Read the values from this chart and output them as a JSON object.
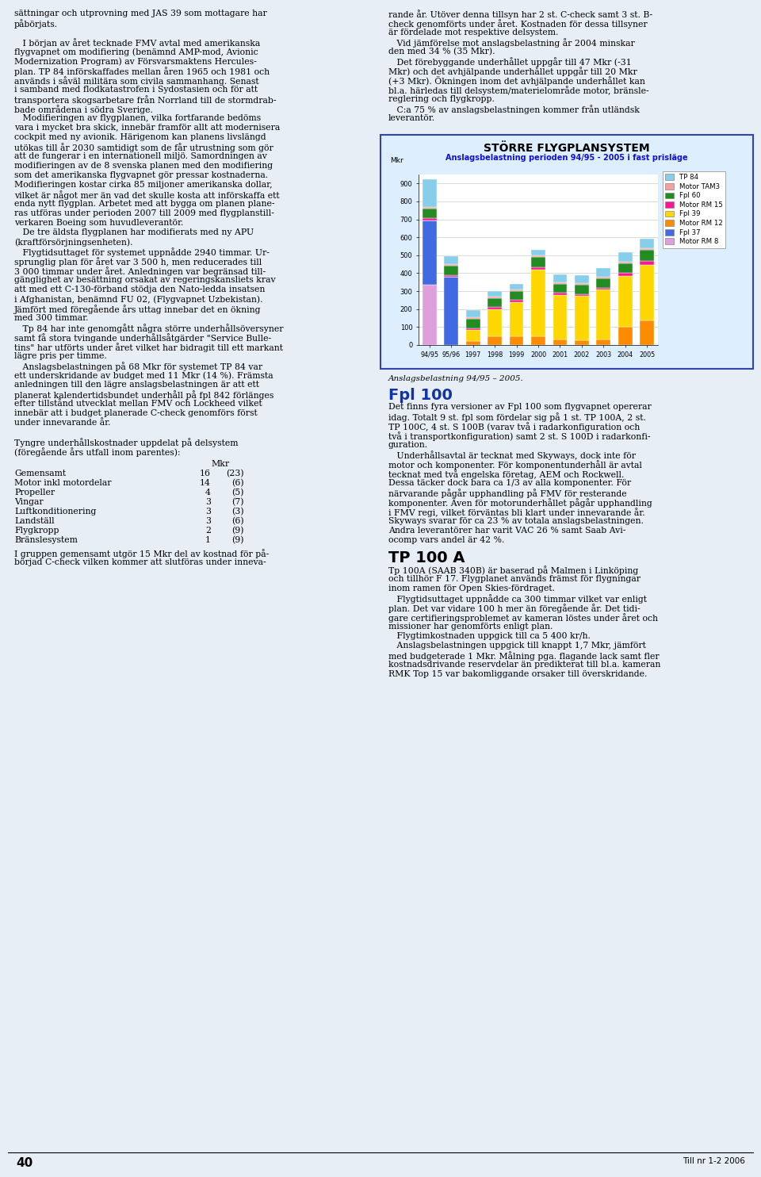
{
  "title": "STÖRRE FLYGPLANSYSTEM",
  "subtitle": "Anslagsbelastning perioden 94/95 - 2005 i fast prisläge",
  "ylabel": "Mkr",
  "years": [
    "94/95",
    "95/96",
    "1997",
    "1998",
    "1999",
    "2000",
    "2001",
    "2002",
    "2003",
    "2004",
    "2005"
  ],
  "series": {
    "TP 84": [
      155,
      45,
      40,
      30,
      30,
      30,
      45,
      45,
      50,
      50,
      50
    ],
    "Motor TAM3": [
      10,
      10,
      10,
      10,
      10,
      10,
      10,
      10,
      10,
      10,
      10
    ],
    "Fpl 60": [
      55,
      50,
      50,
      50,
      50,
      55,
      50,
      50,
      50,
      55,
      60
    ],
    "Motor RM 15": [
      10,
      10,
      10,
      10,
      10,
      15,
      10,
      10,
      10,
      15,
      25
    ],
    "Fpl 39": [
      0,
      0,
      65,
      150,
      190,
      370,
      250,
      250,
      280,
      285,
      310
    ],
    "Motor RM 12": [
      0,
      0,
      20,
      50,
      50,
      50,
      30,
      25,
      30,
      100,
      135
    ],
    "Fpl 37": [
      360,
      380,
      0,
      0,
      0,
      0,
      0,
      0,
      0,
      0,
      0
    ],
    "Motor RM 8": [
      335,
      0,
      0,
      0,
      0,
      0,
      0,
      0,
      0,
      0,
      0
    ]
  },
  "colors": {
    "TP 84": "#87CEEB",
    "Motor TAM3": "#F4A0A0",
    "Fpl 60": "#228B22",
    "Motor RM 15": "#FF1493",
    "Fpl 39": "#FFD700",
    "Motor RM 12": "#FF8C00",
    "Fpl 37": "#4169E1",
    "Motor RM 8": "#DDA0DD"
  },
  "ylim": [
    0,
    950
  ],
  "yticks": [
    0,
    100,
    200,
    300,
    400,
    500,
    600,
    700,
    800,
    900
  ],
  "background_color": "#E8EEF5",
  "chart_bg": "#DDEEFF",
  "border_color": "#3344AA",
  "title_color": "#000000",
  "subtitle_color": "#1111CC",
  "page_num": "40",
  "footer_right": "Till nr 1-2 2006",
  "left_col": [
    "sättningar och utprovning med JAS 39 som mottagare har",
    "påbörjats.",
    "",
    "   I början av året tecknade FMV avtal med amerikanska",
    "flygvapnet om modifiering (benämnd AMP-mod, Avionic",
    "Modernization Program) av Försvarsmaktens Hercules-",
    "plan. TP 84 införskaffades mellan åren 1965 och 1981 och",
    "används i såväl militära som civila sammanhang. Senast",
    "i samband med flodkatastrofen i Sydostasien och för att",
    "transportera skogsarbetare från Norrland till de stormdrab-",
    "bade områdena i södra Sverige.",
    "   Modifieringen av flygplanen, vilka fortfarande bedöms",
    "vara i mycket bra skick, innebär framför allt att modernisera",
    "cockpit med ny avionik. Härigenom kan planens livslängd",
    "utökas till år 2030 samtidigt som de får utrustning som gör",
    "att de fungerar i en internationell miljö. Samordningen av",
    "modifieringen av de 8 svenska planen med den modifiering",
    "som det amerikanska flygvapnet gör pressar kostnaderna.",
    "Modifieringen kostar cirka 85 miljoner amerikanska dollar,",
    "vilket är något mer än vad det skulle kosta att införskaffa ett",
    "enda nytt flygplan. Arbetet med att bygga om planen plane-",
    "ras utföras under perioden 2007 till 2009 med flygplanstill-",
    "verkaren Boeing som huvudleverantör.",
    "   De tre äldsta flygplanen har modifierats med ny APU",
    "(kraftförsörjningsenheten).",
    "   Flygtidsuttaget för systemet uppnådde 2940 timmar. Ur-",
    "sprunglig plan för året var 3 500 h, men reducerades till",
    "3 000 timmar under året. Anledningen var begränsad till-",
    "gänglighet av besättning orsakat av regeringskansliets krav",
    "att med ett C-130-förband stödja den Nato-ledda insatsen",
    "i Afghanistan, benämnd FU 02, (Flygvapnet Uzbekistan).",
    "Jämfört med föregående års uttag innebar det en ökning",
    "med 300 timmar.",
    "   Tp 84 har inte genomgått några större underhållsöversyner",
    "samt få stora tvingande underhållsåtgärder \"Service Bulle-",
    "tins\" har utförts under året vilket har bidragit till ett markant",
    "lägre pris per timme.",
    "   Anslagsbelastningen på 68 Mkr för systemet TP 84 var",
    "ett underskridande av budget med 11 Mkr (14 %). Främsta",
    "anledningen till den lägre anslagsbelastningen är att ett",
    "planerat kalendertidsbundet underhåll på fpl 842 förlänges",
    "efter tillstånd utvecklat mellan FMV och Lockheed vilket",
    "innebär att i budget planerade C-check genomförs först",
    "under innevarande år.",
    "",
    "Tyngre underhållskostnader uppdelat på delsystem",
    "(föregående års utfall inom parentes):"
  ],
  "right_col_top": [
    "rande år. Utöver denna tillsyn har 2 st. C-check samt 3 st. B-",
    "check genomförts under året. Kostnaden för dessa tillsyner",
    "är fördelade mot respektive delsystem.",
    "   Vid jämförelse mot anslagsbelastning år 2004 minskar",
    "den med 34 % (35 Mkr).",
    "   Det förebyggande underhållet uppgår till 47 Mkr (-31",
    "Mkr) och det avhjälpande underhållet uppgår till 20 Mkr",
    "(+3 Mkr). Ökningen inom det avhjälpande underhållet kan",
    "bl.a. härledas till delsystem/materielområde motor, bränsle-",
    "reglering och flygkropp.",
    "   C:a 75 % av anslagsbelastningen kommer från utländsk",
    "leverantör."
  ],
  "table_header": "Mkr",
  "table_rows": [
    [
      "Gemensamt",
      "16",
      "(23)"
    ],
    [
      "Motor inkl motordelar",
      "14",
      "(6)"
    ],
    [
      "Propeller",
      "4",
      "(5)"
    ],
    [
      "Vingar",
      "3",
      "(7)"
    ],
    [
      "Luftkonditionering",
      "3",
      "(3)"
    ],
    [
      "Landställ",
      "3",
      "(6)"
    ],
    [
      "Flygkropp",
      "2",
      "(9)"
    ],
    [
      "Bränslesystem",
      "1",
      "(9)"
    ]
  ],
  "table_footer": [
    "I gruppen gemensamt utgör 15 Mkr del av kostnad för på-",
    "börjad C-check vilken kommer att slutföras under inneva-"
  ],
  "caption": "Anslagsbelastning 94/95 – 2005.",
  "fpl100_heading": "Fpl 100",
  "fpl100_body": [
    "Det finns fyra versioner av Fpl 100 som flygvapnet opererar",
    "idag. Totalt 9 st. fpl som fördelar sig på 1 st. TP 100A, 2 st.",
    "TP 100C, 4 st. S 100B (varav två i radarkonfiguration och",
    "två i transportkonfiguration) samt 2 st. S 100D i radarkonfi-",
    "guration.",
    "   Underhållsavtal är tecknat med Skyways, dock inte för",
    "motor och komponenter. För komponentunderhåll är avtal",
    "tecknat med två engelska företag, AEM och Rockwell.",
    "Dessa täcker dock bara ca 1/3 av alla komponenter. För",
    "närvarande pågår upphandling på FMV för resterande",
    "komponenter. Även för motorunderhållet pågår upphandling",
    "i FMV regi, vilket förväntas bli klart under innevarande år.",
    "Skyways svarar för ca 23 % av totala anslagsbelastningen.",
    "Andra leverantörer har varit VAC 26 % samt Saab Avi-",
    "ocomp vars andel är 42 %."
  ],
  "tp100a_heading": "TP 100 A",
  "tp100a_body": [
    "Tp 100A (SAAB 340B) är baserad på Malmen i Linköping",
    "och tillhör F 17. Flygplanet används främst för flygningar",
    "inom ramen för Open Skies-fördraget.",
    "   Flygtidsuttaget uppnådde ca 300 timmar vilket var enligt",
    "plan. Det var vidare 100 h mer än föregående år. Det tidi-",
    "gare certifieringsproblemet av kameran löstes under året och",
    "missioner har genomförts enligt plan.",
    "   Flygtimkostnaden uppgick till ca 5 400 kr/h.",
    "   Anslagsbelastningen uppgick till knappt 1,7 Mkr, jämfört",
    "med budgeterade 1 Mkr. Målning pga. flagande lack samt fler",
    "kostnadsdrivande reservdelar än predikterat till bl.a. kameran",
    "RMK Top 15 var bakomliggande orsaker till överskridande."
  ]
}
